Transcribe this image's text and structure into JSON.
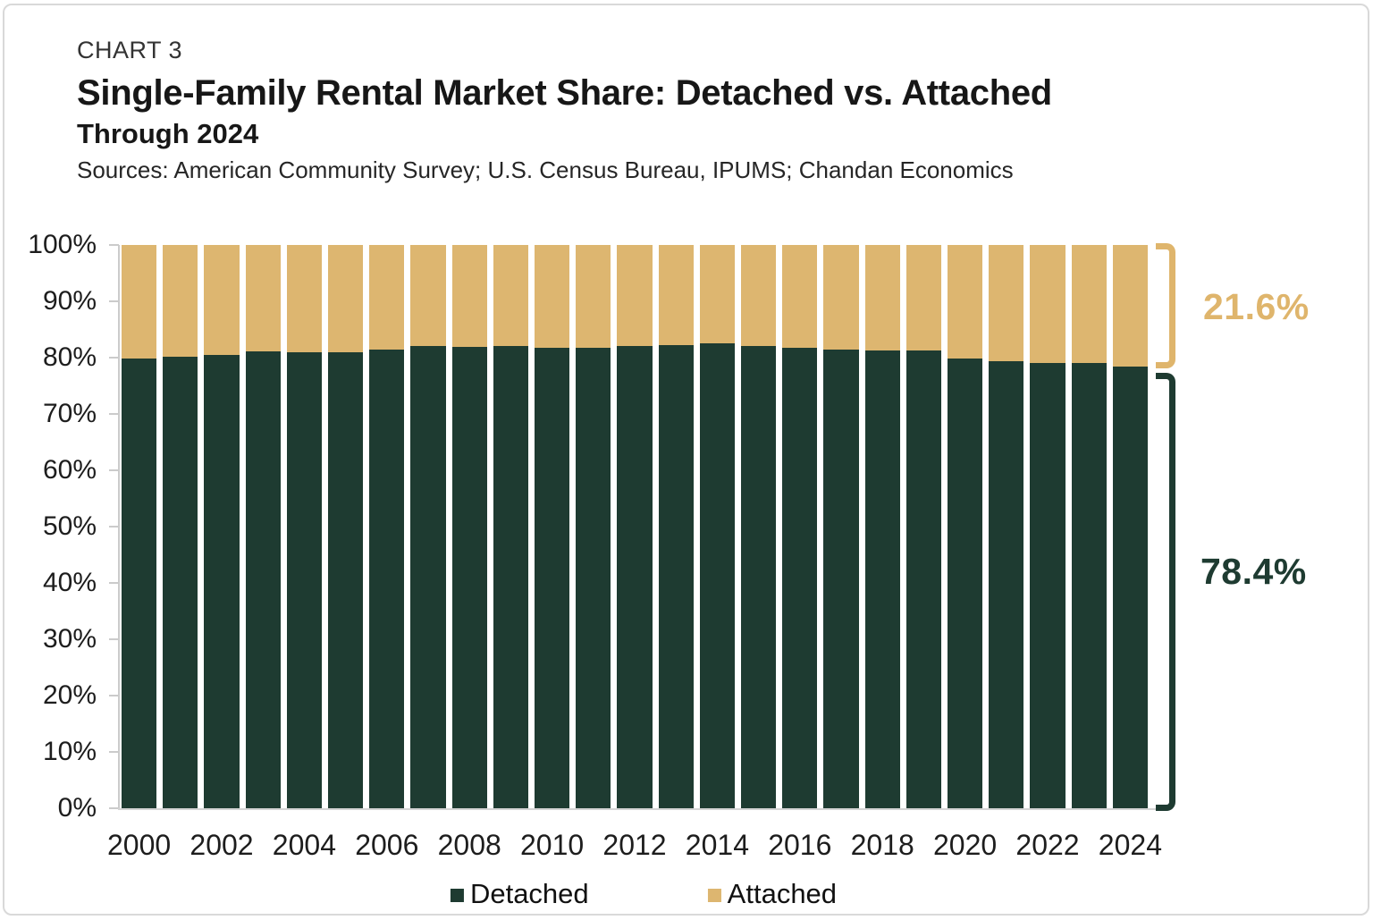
{
  "header": {
    "chart_label": "CHART 3",
    "title": "Single-Family Rental Market Share: Detached vs. Attached",
    "subtitle": "Through 2024",
    "sources": "Sources: American Community Survey; U.S. Census Bureau, IPUMS; Chandan Economics"
  },
  "chart_data": {
    "type": "bar",
    "stacked": true,
    "normalized_to_100_percent": true,
    "title": "Single-Family Rental Market Share: Detached vs. Attached Through 2024",
    "categories": [
      2000,
      2001,
      2002,
      2003,
      2004,
      2005,
      2006,
      2007,
      2008,
      2009,
      2010,
      2011,
      2012,
      2013,
      2014,
      2015,
      2016,
      2017,
      2018,
      2019,
      2020,
      2021,
      2022,
      2023,
      2024
    ],
    "series": [
      {
        "name": "Detached",
        "color": "#1E3B31",
        "values": [
          79.8,
          80.2,
          80.5,
          81.1,
          81.0,
          81.0,
          81.5,
          82.1,
          81.9,
          82.1,
          81.7,
          81.8,
          82.0,
          82.2,
          82.5,
          82.1,
          81.8,
          81.5,
          81.3,
          81.2,
          79.9,
          79.4,
          79.1,
          79.1,
          78.4
        ]
      },
      {
        "name": "Attached",
        "color": "#DDB670",
        "values": [
          20.2,
          19.8,
          19.5,
          18.9,
          19.0,
          19.0,
          18.5,
          17.9,
          18.1,
          17.9,
          18.3,
          18.2,
          18.0,
          17.8,
          17.5,
          17.9,
          18.2,
          18.5,
          18.7,
          18.8,
          20.1,
          20.6,
          20.9,
          20.9,
          21.6
        ]
      }
    ],
    "x_tick_labels": [
      "2000",
      "2002",
      "2004",
      "2006",
      "2008",
      "2010",
      "2012",
      "2014",
      "2016",
      "2018",
      "2020",
      "2022",
      "2024"
    ],
    "y_axis": {
      "min": 0,
      "max": 100,
      "step": 10,
      "tick_labels_top_down": [
        "100%",
        "90%",
        "80%",
        "70%",
        "60%",
        "50%",
        "40%",
        "30%",
        "20%",
        "10%",
        "0%"
      ]
    },
    "grid": "off",
    "legend": {
      "position": "bottom",
      "entries": [
        "Detached",
        "Attached"
      ]
    },
    "annotations": [
      {
        "text": "21.6%",
        "series": "Attached",
        "color": "#DFB56C",
        "refers_to_year": 2024,
        "bracket_range_pct": [
          78.4,
          100
        ]
      },
      {
        "text": "78.4%",
        "series": "Detached",
        "color": "#1E3B31",
        "refers_to_year": 2024,
        "bracket_range_pct": [
          0,
          78.4
        ]
      }
    ]
  }
}
